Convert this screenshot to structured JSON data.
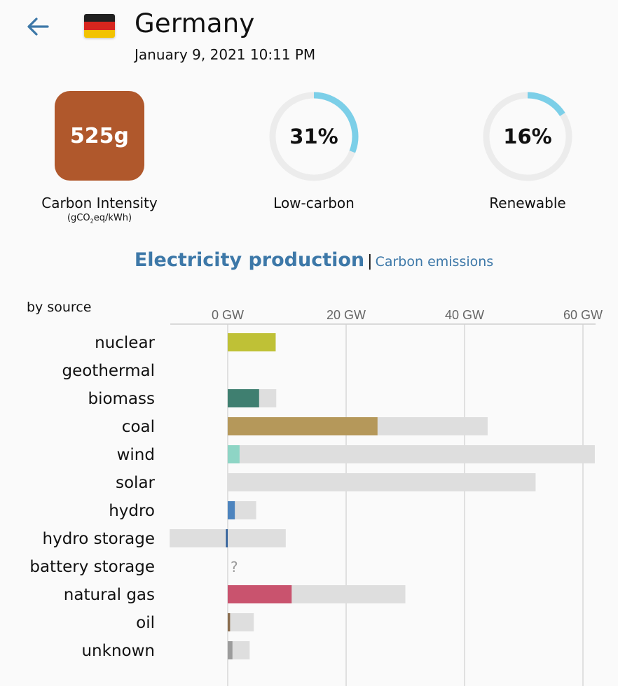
{
  "header": {
    "back_icon": "arrow-left-icon",
    "flag_icon": "germany-flag-icon",
    "country": "Germany",
    "datetime": "January 9, 2021 10:11 PM"
  },
  "metrics": {
    "carbon_intensity": {
      "value": "525g",
      "label": "Carbon Intensity",
      "unit_prefix": "(gCO",
      "unit_sub": "2",
      "unit_suffix": "eq/kWh)",
      "color": "#b0582c"
    },
    "low_carbon": {
      "value": "31%",
      "fraction": 0.31,
      "label": "Low-carbon",
      "color": "#7ccfe8"
    },
    "renewable": {
      "value": "16%",
      "fraction": 0.16,
      "label": "Renewable",
      "color": "#7ccfe8"
    }
  },
  "toggle": {
    "active": "Electricity production",
    "separator": "|",
    "inactive": "Carbon emissions"
  },
  "chart_data": {
    "type": "bar",
    "title": "by source",
    "xlabel": "",
    "ylabel": "",
    "xlim": [
      -10,
      62
    ],
    "ticks": [
      {
        "value": 0,
        "label": "0 GW"
      },
      {
        "value": 20,
        "label": "20 GW"
      },
      {
        "value": 40,
        "label": "40 GW"
      },
      {
        "value": 60,
        "label": "60 GW"
      }
    ],
    "categories": [
      "nuclear",
      "geothermal",
      "biomass",
      "coal",
      "wind",
      "solar",
      "hydro",
      "hydro storage",
      "battery storage",
      "natural gas",
      "oil",
      "unknown"
    ],
    "series": [
      {
        "name": "production",
        "values": [
          8.1,
          null,
          5.3,
          25.3,
          2.0,
          0,
          1.2,
          -0.3,
          null,
          10.8,
          0.4,
          0.8
        ]
      },
      {
        "name": "capacity_min",
        "values": [
          0,
          null,
          0,
          0,
          0,
          0,
          0,
          -9.8,
          null,
          0,
          0,
          0
        ]
      },
      {
        "name": "capacity",
        "values": [
          8.1,
          null,
          8.2,
          43.9,
          62.0,
          52.0,
          4.8,
          9.8,
          null,
          30.0,
          4.4,
          3.7
        ]
      }
    ],
    "colors": [
      "#bfc136",
      null,
      "#3f7f70",
      "#b5985a",
      "#8ed5c5",
      "#f5c242",
      "#4d84be",
      "#2b5c98",
      null,
      "#c9536e",
      "#8a6d4e",
      "#9c9c9c"
    ],
    "missing_marker": "?"
  }
}
